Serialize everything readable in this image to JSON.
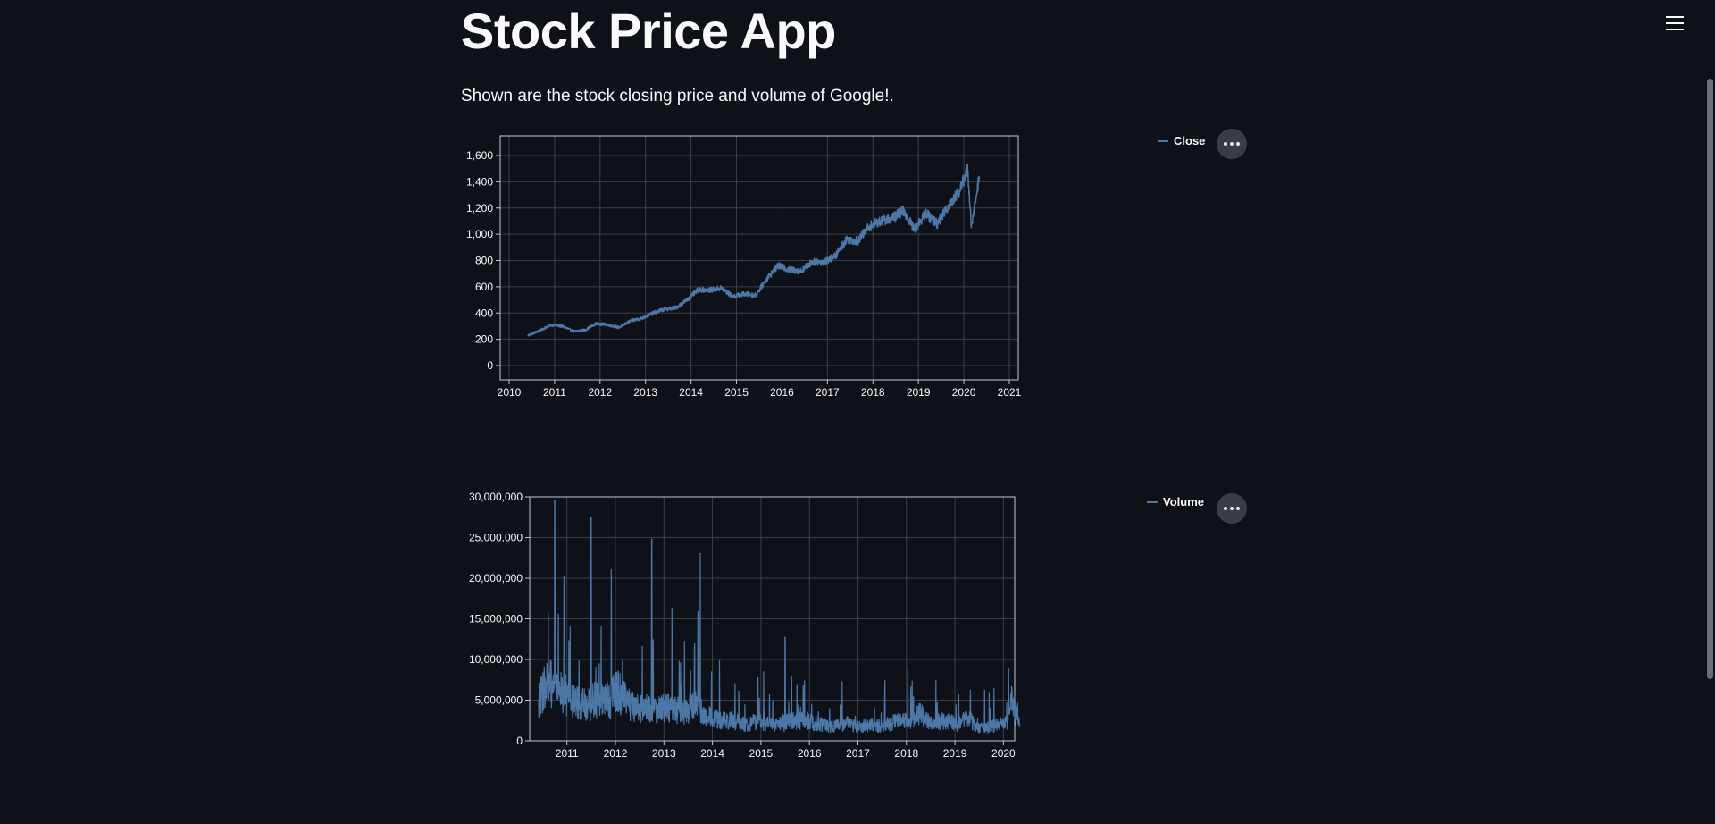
{
  "app": {
    "title": "Stock Price App",
    "subtitle": "Shown are the stock closing price and volume of Google!."
  },
  "icons": {
    "menu": "hamburger-icon",
    "chart_menu": "more-horizontal-icon"
  },
  "colors": {
    "background": "#0e1117",
    "series": "#4c78a8",
    "grid": "#3b3f47",
    "axis": "#c7c9cd",
    "text": "#fafafa"
  },
  "chart_data": [
    {
      "type": "line",
      "series": [
        {
          "name": "Close",
          "color": "#4c78a8"
        }
      ],
      "x": [
        "2010-06",
        "2010-09",
        "2010-12",
        "2011-03",
        "2011-06",
        "2011-09",
        "2011-12",
        "2012-03",
        "2012-06",
        "2012-09",
        "2012-12",
        "2013-03",
        "2013-06",
        "2013-09",
        "2013-12",
        "2014-03",
        "2014-06",
        "2014-09",
        "2014-12",
        "2015-03",
        "2015-06",
        "2015-09",
        "2015-12",
        "2016-03",
        "2016-06",
        "2016-09",
        "2016-12",
        "2017-03",
        "2017-06",
        "2017-09",
        "2017-12",
        "2018-03",
        "2018-06",
        "2018-09",
        "2018-12",
        "2019-03",
        "2019-06",
        "2019-09",
        "2019-12",
        "2020-02",
        "2020-03",
        "2020-05"
      ],
      "y": [
        230,
        265,
        310,
        300,
        260,
        270,
        320,
        310,
        290,
        340,
        360,
        400,
        430,
        440,
        500,
        580,
        575,
        590,
        525,
        545,
        535,
        660,
        760,
        730,
        720,
        790,
        790,
        830,
        960,
        950,
        1060,
        1100,
        1120,
        1180,
        1040,
        1160,
        1080,
        1220,
        1340,
        1500,
        1050,
        1430
      ],
      "xlim": [
        "2010",
        "2021"
      ],
      "ylim": [
        0,
        1600
      ],
      "xticks": [
        "2010",
        "2011",
        "2012",
        "2013",
        "2014",
        "2015",
        "2016",
        "2017",
        "2018",
        "2019",
        "2020",
        "2021"
      ],
      "yticks": [
        "0",
        "200",
        "400",
        "600",
        "800",
        "1,000",
        "1,200",
        "1,400",
        "1,600"
      ],
      "ytick_values": [
        0,
        200,
        400,
        600,
        800,
        1000,
        1200,
        1400,
        1600
      ],
      "grid": true,
      "legend_position": "right"
    },
    {
      "type": "line",
      "series": [
        {
          "name": "Volume",
          "color": "#4c78a8"
        }
      ],
      "x": [
        "2010-06",
        "2010-08",
        "2010-10",
        "2010-12",
        "2011-02",
        "2011-04",
        "2011-07",
        "2011-10",
        "2011-12",
        "2012-02",
        "2012-04",
        "2012-07",
        "2012-10",
        "2012-12",
        "2013-03",
        "2013-06",
        "2013-09",
        "2013-10",
        "2013-12",
        "2014-03",
        "2014-06",
        "2014-09",
        "2014-12",
        "2015-03",
        "2015-07",
        "2015-09",
        "2015-12",
        "2016-04",
        "2016-07",
        "2016-10",
        "2017-01",
        "2017-04",
        "2017-07",
        "2017-10",
        "2018-02",
        "2018-04",
        "2018-07",
        "2018-10",
        "2019-02",
        "2019-04",
        "2019-07",
        "2019-10",
        "2020-02",
        "2020-03",
        "2020-05"
      ],
      "y": [
        5000000,
        7000000,
        29600000,
        6000000,
        5000000,
        4500000,
        27500000,
        5000000,
        21000000,
        6000000,
        4500000,
        4000000,
        24800000,
        4000000,
        4000000,
        3500000,
        4500000,
        23000000,
        3000000,
        2500000,
        2500000,
        2000000,
        2500000,
        2000000,
        12700000,
        2500000,
        2500000,
        2000000,
        1800000,
        2200000,
        1800000,
        2000000,
        1800000,
        2300000,
        2500000,
        3500000,
        2000000,
        2500000,
        2000000,
        2800000,
        1500000,
        1800000,
        2500000,
        4800000,
        2000000
      ],
      "xlim": [
        "2010-06",
        "2020-06"
      ],
      "ylim": [
        0,
        30000000
      ],
      "xticks": [
        "2011",
        "2012",
        "2013",
        "2014",
        "2015",
        "2016",
        "2017",
        "2018",
        "2019",
        "2020"
      ],
      "yticks": [
        "0",
        "5,000,000",
        "10,000,000",
        "15,000,000",
        "20,000,000",
        "25,000,000",
        "30,000,000"
      ],
      "ytick_values": [
        0,
        5000000,
        10000000,
        15000000,
        20000000,
        25000000,
        30000000
      ],
      "grid": true,
      "legend_position": "right"
    }
  ]
}
